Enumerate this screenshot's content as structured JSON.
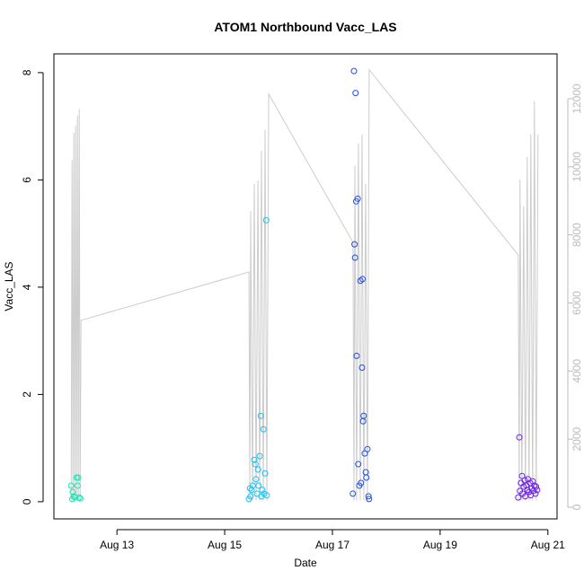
{
  "chart_data": {
    "type": "scatter",
    "title": "ATOM1 Northbound Vacc_LAS",
    "xlabel": "Date",
    "ylabel": "Vacc_LAS",
    "xlim": [
      11.83,
      21.17
    ],
    "ylim": [
      -0.32,
      8.35
    ],
    "y2lim": [
      -343,
      13318
    ],
    "xticks": [
      {
        "value": 13,
        "label": "Aug 13"
      },
      {
        "value": 15,
        "label": "Aug 15"
      },
      {
        "value": 17,
        "label": "Aug 17"
      },
      {
        "value": 19,
        "label": "Aug 19"
      },
      {
        "value": 21,
        "label": "Aug 21"
      }
    ],
    "yticks": [
      0,
      2,
      4,
      6,
      8
    ],
    "y2ticks": [
      0,
      2000,
      4000,
      6000,
      8000,
      10000,
      12000
    ],
    "series": [
      {
        "type": "line",
        "axis": "y2",
        "color": "#cccccc",
        "x": [
          12.15,
          12.167,
          12.183,
          12.2,
          12.217,
          12.233,
          12.25,
          12.267,
          12.283,
          12.3,
          12.317,
          12.333,
          15.45,
          15.467,
          15.483,
          15.517,
          15.55,
          15.583,
          15.617,
          15.65,
          15.683,
          15.717,
          15.75,
          15.783,
          15.817,
          17.383,
          17.4,
          17.417,
          17.45,
          17.483,
          17.517,
          17.55,
          17.583,
          17.617,
          17.65,
          17.683,
          20.45,
          20.467,
          20.483,
          20.517,
          20.55,
          20.583,
          20.617,
          20.65,
          20.683,
          20.717,
          20.75,
          20.783,
          20.817
        ],
        "values": [
          200,
          10200,
          200,
          11000,
          200,
          11200,
          200,
          11500,
          200,
          11700,
          200,
          5490,
          6910,
          200,
          8700,
          200,
          9500,
          200,
          9600,
          200,
          10470,
          200,
          11080,
          200,
          12140,
          7780,
          200,
          10030,
          200,
          10690,
          200,
          10950,
          200,
          9500,
          200,
          12850,
          7410,
          200,
          9630,
          200,
          8840,
          200,
          10290,
          200,
          10950,
          200,
          11920,
          200,
          10950
        ]
      },
      {
        "type": "scatter",
        "color": "#19e6b3",
        "x": [
          12.15,
          12.17,
          12.18,
          12.2,
          12.22,
          12.25,
          12.27,
          12.28,
          12.3,
          12.32
        ],
        "values": [
          0.3,
          0.05,
          0.18,
          0.1,
          0.08,
          0.45,
          0.3,
          0.45,
          0.08,
          0.06
        ]
      },
      {
        "type": "scatter",
        "color": "#19c3f0",
        "x": [
          15.45,
          15.47,
          15.48,
          15.5,
          15.52,
          15.55,
          15.57,
          15.58,
          15.6,
          15.62,
          15.63,
          15.65,
          15.67,
          15.68,
          15.7,
          15.72,
          15.73,
          15.75,
          15.77,
          15.78
        ],
        "values": [
          0.05,
          0.25,
          0.1,
          0.22,
          0.3,
          0.78,
          0.7,
          0.42,
          0.15,
          0.6,
          0.3,
          0.85,
          1.6,
          0.1,
          0.22,
          1.35,
          0.15,
          0.53,
          5.25,
          0.12
        ]
      },
      {
        "type": "scatter",
        "color": "#1f4fe6",
        "x": [
          17.38,
          17.4,
          17.41,
          17.42,
          17.43,
          17.44,
          17.45,
          17.47,
          17.48,
          17.5,
          17.52,
          17.53,
          17.55,
          17.56,
          17.57,
          17.58,
          17.6,
          17.62,
          17.63,
          17.65,
          17.67,
          17.68
        ],
        "values": [
          0.15,
          8.03,
          4.8,
          4.55,
          7.62,
          5.6,
          2.72,
          5.65,
          0.7,
          0.3,
          4.12,
          0.35,
          2.5,
          4.15,
          1.5,
          1.6,
          0.9,
          0.55,
          0.45,
          0.98,
          0.1,
          0.05
        ]
      },
      {
        "type": "scatter",
        "color": "#6a1fe6",
        "x": [
          20.45,
          20.47,
          20.48,
          20.5,
          20.52,
          20.53,
          20.55,
          20.57,
          20.58,
          20.6,
          20.62,
          20.63,
          20.65,
          20.67,
          20.68,
          20.7,
          20.72,
          20.73,
          20.75,
          20.77,
          20.78,
          20.8
        ],
        "values": [
          0.08,
          1.2,
          0.2,
          0.35,
          0.48,
          0.15,
          0.28,
          0.4,
          0.1,
          0.3,
          0.22,
          0.42,
          0.18,
          0.35,
          0.12,
          0.25,
          0.38,
          0.2,
          0.3,
          0.15,
          0.28,
          0.22
        ]
      }
    ]
  }
}
